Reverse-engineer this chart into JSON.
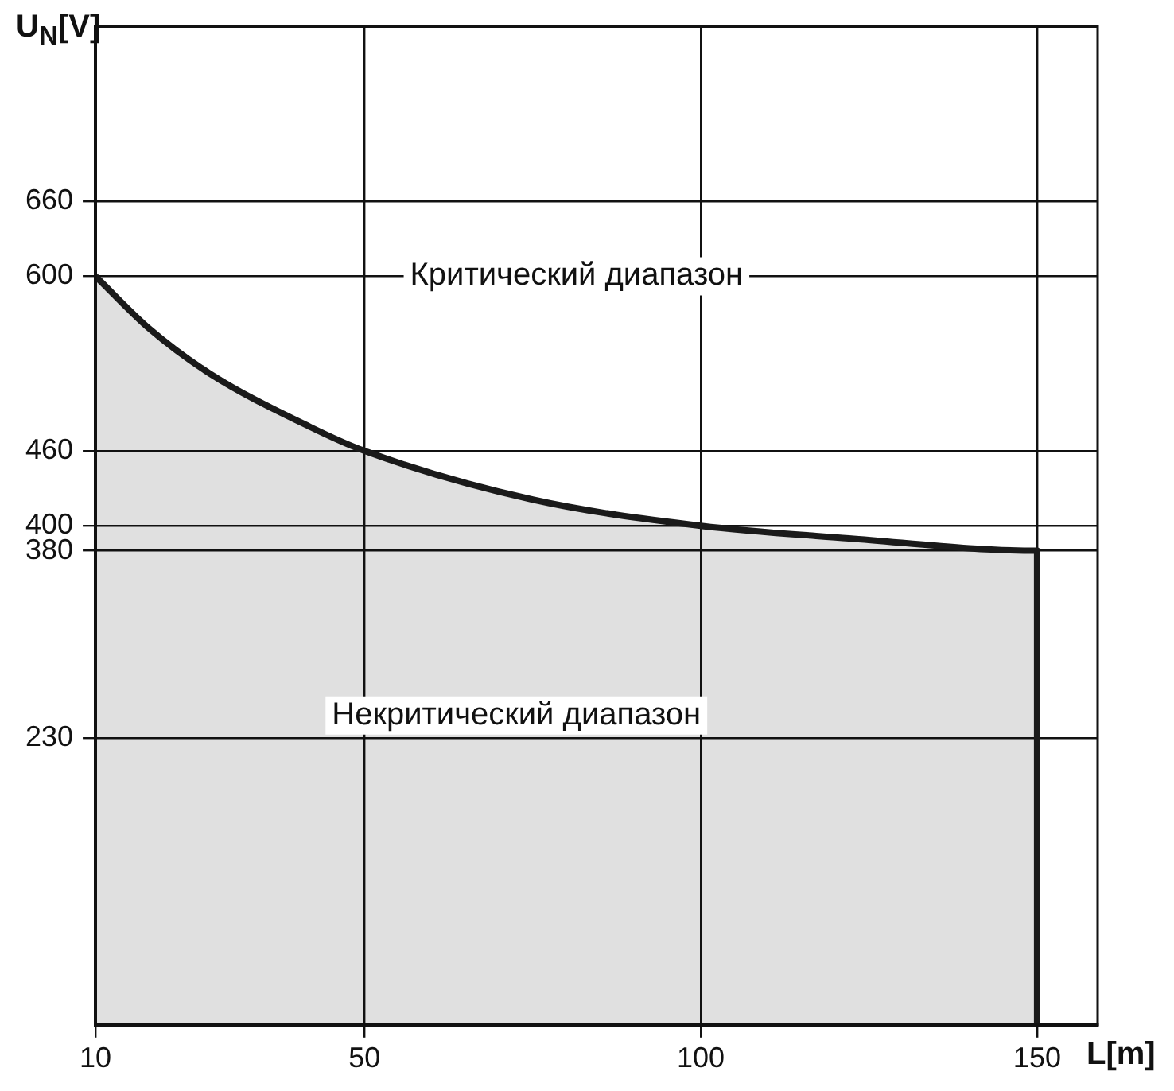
{
  "chart_data": {
    "type": "area",
    "xlabel": "L[m]",
    "ylabel": "U$_{N}$[V]",
    "series": [
      {
        "color": "#1a1a1a",
        "x": [
          10,
          18,
          27,
          42,
          50,
          75,
          100,
          122,
          150,
          150
        ],
        "values": [
          600,
          558,
          522,
          479,
          460,
          421,
          400,
          390,
          380,
          0
        ]
      }
    ],
    "xlim": [
      10,
      159
    ],
    "xticks": [
      10,
      50,
      100,
      150
    ],
    "ylim": [
      0,
      800
    ],
    "yticks": [
      230,
      380,
      400,
      460,
      600,
      660
    ],
    "grid": true,
    "legend": false,
    "marker": "none",
    "line_style": "solid",
    "annotations": [
      "Критический диапазон",
      "Некритический диапазон"
    ]
  }
}
